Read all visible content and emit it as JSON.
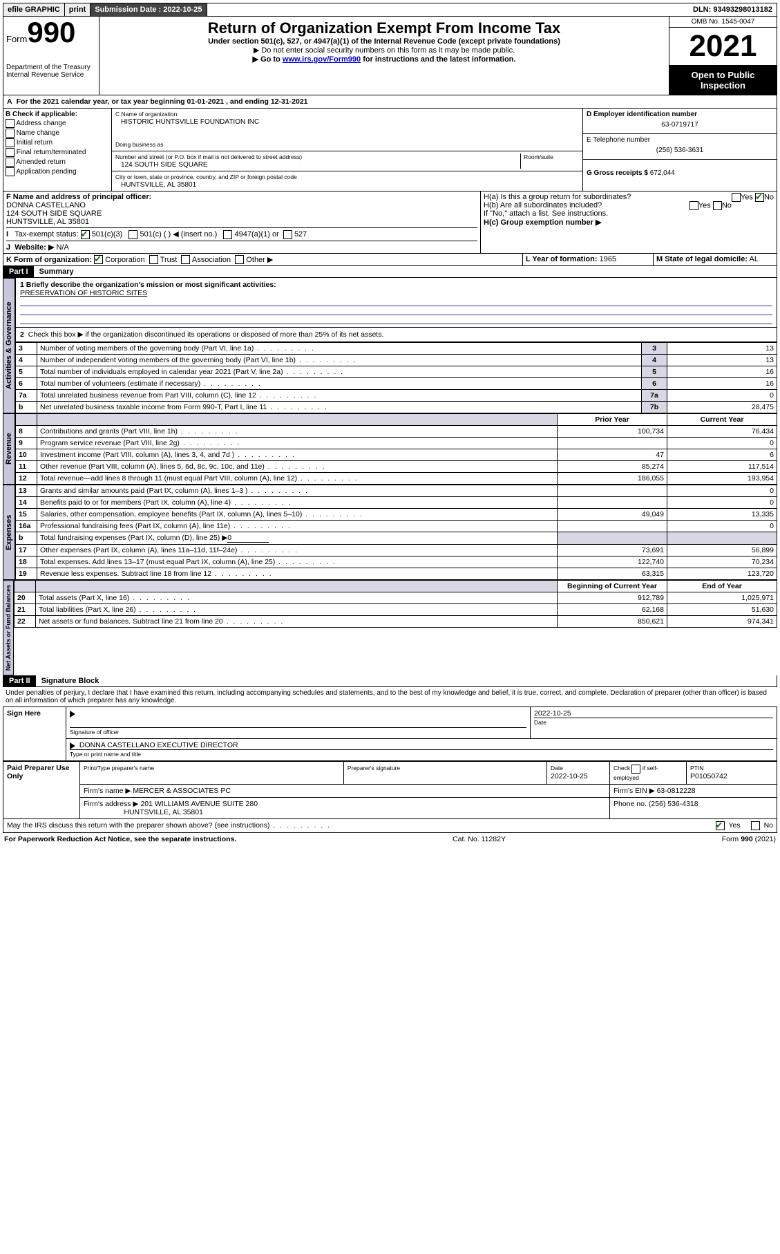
{
  "topbar": {
    "efile": "efile GRAPHIC",
    "print": "print",
    "sub_label": "Submission Date : 2022-10-25",
    "dln": "DLN: 93493298013182"
  },
  "header": {
    "form_label": "Form",
    "form_no": "990",
    "dept": "Department of the Treasury",
    "irs": "Internal Revenue Service",
    "title": "Return of Organization Exempt From Income Tax",
    "sub1": "Under section 501(c), 527, or 4947(a)(1) of the Internal Revenue Code (except private foundations)",
    "sub2": "▶ Do not enter social security numbers on this form as it may be made public.",
    "sub3_pre": "▶ Go to ",
    "sub3_link": "www.irs.gov/Form990",
    "sub3_post": " for instructions and the latest information.",
    "omb": "OMB No. 1545-0047",
    "year": "2021",
    "inspect1": "Open to Public",
    "inspect2": "Inspection"
  },
  "line_a": "For the 2021 calendar year, or tax year beginning 01-01-2021   , and ending 12-31-2021",
  "box_b": {
    "title": "B Check if applicable:",
    "opts": [
      "Address change",
      "Name change",
      "Initial return",
      "Final return/terminated",
      "Amended return",
      "Application pending"
    ]
  },
  "box_c": {
    "label": "C Name of organization",
    "name": "HISTORIC HUNTSVILLE FOUNDATION INC",
    "dba_label": "Doing business as",
    "addr_label": "Number and street (or P.O. box if mail is not delivered to street address)",
    "room_label": "Room/suite",
    "addr": "124 SOUTH SIDE SQUARE",
    "city_label": "City or town, state or province, country, and ZIP or foreign postal code",
    "city": "HUNTSVILLE, AL  35801"
  },
  "box_d": {
    "label": "D Employer identification number",
    "val": "63-0719717"
  },
  "box_e": {
    "label": "E Telephone number",
    "val": "(256) 536-3631"
  },
  "box_g": {
    "label": "G Gross receipts $",
    "val": "672,044"
  },
  "box_f": {
    "label": "F Name and address of principal officer:",
    "name": "DONNA CASTELLANO",
    "addr1": "124 SOUTH SIDE SQUARE",
    "addr2": "HUNTSVILLE, AL  35801"
  },
  "box_h": {
    "a": "H(a)  Is this a group return for subordinates?",
    "b": "H(b)  Are all subordinates included?",
    "note": "If \"No,\" attach a list. See instructions.",
    "c": "H(c)  Group exemption number ▶",
    "yes": "Yes",
    "no": "No"
  },
  "box_i": {
    "label": "Tax-exempt status:",
    "a": "501(c)(3)",
    "b": "501(c) (   ) ◀ (insert no.)",
    "c": "4947(a)(1) or",
    "d": "527"
  },
  "box_j": {
    "label": "Website: ▶",
    "val": "N/A"
  },
  "box_k": {
    "label": "K Form of organization:",
    "a": "Corporation",
    "b": "Trust",
    "c": "Association",
    "d": "Other ▶"
  },
  "box_l": {
    "label": "L Year of formation:",
    "val": "1965"
  },
  "box_m": {
    "label": "M State of legal domicile:",
    "val": "AL"
  },
  "part1": {
    "tag": "Part I",
    "title": "Summary"
  },
  "mission": {
    "line1": "1  Briefly describe the organization's mission or most significant activities:",
    "text": "PRESERVATION OF HISTORIC SITES"
  },
  "line2": "Check this box ▶      if the organization discontinued its operations or disposed of more than 25% of its net assets.",
  "gov_tab": "Activities & Governance",
  "gov_rows": [
    {
      "n": "3",
      "t": "Number of voting members of the governing body (Part VI, line 1a)",
      "c": "3",
      "v": "13"
    },
    {
      "n": "4",
      "t": "Number of independent voting members of the governing body (Part VI, line 1b)",
      "c": "4",
      "v": "13"
    },
    {
      "n": "5",
      "t": "Total number of individuals employed in calendar year 2021 (Part V, line 2a)",
      "c": "5",
      "v": "16"
    },
    {
      "n": "6",
      "t": "Total number of volunteers (estimate if necessary)",
      "c": "6",
      "v": "16"
    },
    {
      "n": "7a",
      "t": "Total unrelated business revenue from Part VIII, column (C), line 12",
      "c": "7a",
      "v": "0"
    },
    {
      "n": "b",
      "t": "Net unrelated business taxable income from Form 990-T, Part I, line 11",
      "c": "7b",
      "v": "28,475"
    }
  ],
  "col_hdr": {
    "prior": "Prior Year",
    "current": "Current Year",
    "boy": "Beginning of Current Year",
    "eoy": "End of Year"
  },
  "rev_tab": "Revenue",
  "rev_rows": [
    {
      "n": "8",
      "t": "Contributions and grants (Part VIII, line 1h)",
      "p": "100,734",
      "c": "76,434"
    },
    {
      "n": "9",
      "t": "Program service revenue (Part VIII, line 2g)",
      "p": "",
      "c": "0"
    },
    {
      "n": "10",
      "t": "Investment income (Part VIII, column (A), lines 3, 4, and 7d )",
      "p": "47",
      "c": "6"
    },
    {
      "n": "11",
      "t": "Other revenue (Part VIII, column (A), lines 5, 6d, 8c, 9c, 10c, and 11e)",
      "p": "85,274",
      "c": "117,514"
    },
    {
      "n": "12",
      "t": "Total revenue—add lines 8 through 11 (must equal Part VIII, column (A), line 12)",
      "p": "186,055",
      "c": "193,954"
    }
  ],
  "exp_tab": "Expenses",
  "exp_rows": [
    {
      "n": "13",
      "t": "Grants and similar amounts paid (Part IX, column (A), lines 1–3 )",
      "p": "",
      "c": "0"
    },
    {
      "n": "14",
      "t": "Benefits paid to or for members (Part IX, column (A), line 4)",
      "p": "",
      "c": "0"
    },
    {
      "n": "15",
      "t": "Salaries, other compensation, employee benefits (Part IX, column (A), lines 5–10)",
      "p": "49,049",
      "c": "13,335"
    },
    {
      "n": "16a",
      "t": "Professional fundraising fees (Part IX, column (A), line 11e)",
      "p": "",
      "c": "0"
    }
  ],
  "line16b": {
    "n": "b",
    "t": "Total fundraising expenses (Part IX, column (D), line 25) ▶",
    "v": "0"
  },
  "exp_rows2": [
    {
      "n": "17",
      "t": "Other expenses (Part IX, column (A), lines 11a–11d, 11f–24e)",
      "p": "73,691",
      "c": "56,899"
    },
    {
      "n": "18",
      "t": "Total expenses. Add lines 13–17 (must equal Part IX, column (A), line 25)",
      "p": "122,740",
      "c": "70,234"
    },
    {
      "n": "19",
      "t": "Revenue less expenses. Subtract line 18 from line 12",
      "p": "63,315",
      "c": "123,720"
    }
  ],
  "na_tab": "Net Assets or Fund Balances",
  "na_rows": [
    {
      "n": "20",
      "t": "Total assets (Part X, line 16)",
      "p": "912,789",
      "c": "1,025,971"
    },
    {
      "n": "21",
      "t": "Total liabilities (Part X, line 26)",
      "p": "62,168",
      "c": "51,630"
    },
    {
      "n": "22",
      "t": "Net assets or fund balances. Subtract line 21 from line 20",
      "p": "850,621",
      "c": "974,341"
    }
  ],
  "part2": {
    "tag": "Part II",
    "title": "Signature Block"
  },
  "penalties": "Under penalties of perjury, I declare that I have examined this return, including accompanying schedules and statements, and to the best of my knowledge and belief, it is true, correct, and complete. Declaration of preparer (other than officer) is based on all information of which preparer has any knowledge.",
  "sign": {
    "here": "Sign Here",
    "sig_label": "Signature of officer",
    "date_label": "Date",
    "date": "2022-10-25",
    "name": "DONNA CASTELLANO  EXECUTIVE DIRECTOR",
    "name_label": "Type or print name and title"
  },
  "paid": {
    "title": "Paid Preparer Use Only",
    "h1": "Print/Type preparer's name",
    "h2": "Preparer's signature",
    "h3": "Date",
    "dateval": "2022-10-25",
    "h4pre": "Check",
    "h4post": "if self-employed",
    "h5": "PTIN",
    "ptin": "P01050742",
    "firm_label": "Firm's name   ▶",
    "firm": "MERCER & ASSOCIATES PC",
    "ein_label": "Firm's EIN ▶",
    "ein": "63-0812228",
    "addr_label": "Firm's address ▶",
    "addr1": "201 WILLIAMS AVENUE SUITE 280",
    "addr2": "HUNTSVILLE, AL  35801",
    "phone_label": "Phone no.",
    "phone": "(256) 536-4318"
  },
  "discuss": {
    "q": "May the IRS discuss this return with the preparer shown above? (see instructions)",
    "yes": "Yes",
    "no": "No"
  },
  "footer": {
    "pra": "For Paperwork Reduction Act Notice, see the separate instructions.",
    "cat": "Cat. No. 11282Y",
    "form": "Form 990 (2021)"
  }
}
